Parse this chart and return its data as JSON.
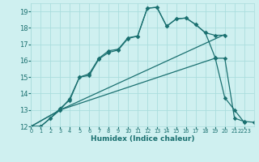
{
  "title": "",
  "xlabel": "Humidex (Indice chaleur)",
  "bg_color": "#cff0f0",
  "line_color": "#1a7070",
  "grid_color": "#aadddd",
  "xlim": [
    0,
    23
  ],
  "ylim": [
    12,
    19.5
  ],
  "yticks": [
    12,
    13,
    14,
    15,
    16,
    17,
    18,
    19
  ],
  "xtick_labels": [
    "0",
    "1",
    "2",
    "3",
    "4",
    "5",
    "6",
    "7",
    "8",
    "9",
    "10",
    "11",
    "12",
    "13",
    "14",
    "15",
    "16",
    "17",
    "18",
    "19",
    "20",
    "21",
    "2223"
  ],
  "line1_x": [
    0,
    1,
    2,
    3,
    4,
    5,
    6,
    7,
    8,
    9,
    10,
    11,
    12,
    13,
    14,
    15,
    16,
    17,
    18,
    19,
    20
  ],
  "line1_y": [
    12,
    12,
    12.5,
    13,
    13.7,
    15.0,
    15.1,
    16.1,
    16.5,
    16.65,
    17.35,
    17.5,
    19.2,
    19.25,
    18.1,
    18.55,
    18.6,
    18.2,
    17.7,
    17.55,
    17.55
  ],
  "line2_x": [
    0,
    1,
    2,
    3,
    4,
    5,
    6,
    7,
    8,
    9,
    10,
    11,
    12,
    13,
    14,
    15,
    16,
    17,
    18,
    19,
    20,
    21,
    22
  ],
  "line2_y": [
    12,
    12,
    12.5,
    13.1,
    13.6,
    15.0,
    15.2,
    16.15,
    16.6,
    16.7,
    17.4,
    17.5,
    19.2,
    19.25,
    18.1,
    18.55,
    18.6,
    18.2,
    17.7,
    16.2,
    13.75,
    13.0,
    12.25
  ],
  "line3_x": [
    0,
    3,
    20
  ],
  "line3_y": [
    12,
    13,
    17.6
  ],
  "line4_x": [
    0,
    3,
    19,
    20,
    21,
    22,
    23
  ],
  "line4_y": [
    12,
    13,
    16.15,
    16.15,
    12.5,
    12.3,
    12.25
  ]
}
